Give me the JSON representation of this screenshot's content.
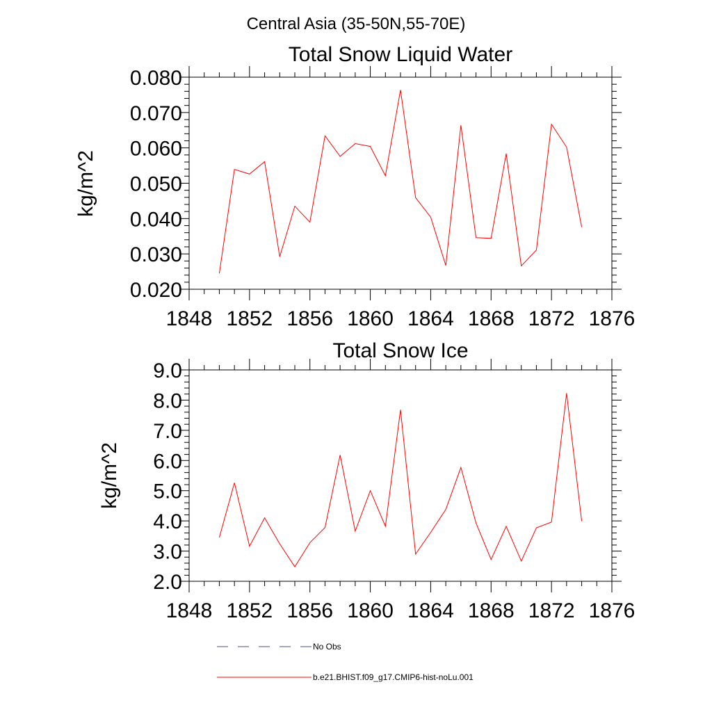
{
  "figure_title": "Central Asia (35-50N,55-70E)",
  "chart_data": [
    {
      "type": "line",
      "title": "Total Snow Liquid Water",
      "xlabel": "",
      "ylabel": "kg/m^2",
      "xlim": [
        1848,
        1876
      ],
      "ylim": [
        0.02,
        0.08
      ],
      "xticks": [
        1848,
        1852,
        1856,
        1860,
        1864,
        1868,
        1872,
        1876
      ],
      "xtick_labels": [
        "1848",
        "1852",
        "1856",
        "1860",
        "1864",
        "1868",
        "1872",
        "1876"
      ],
      "yticks": [
        0.02,
        0.03,
        0.04,
        0.05,
        0.06,
        0.07,
        0.08
      ],
      "ytick_labels": [
        "0.020",
        "0.030",
        "0.040",
        "0.050",
        "0.060",
        "0.070",
        "0.080"
      ],
      "x": [
        1850,
        1851,
        1852,
        1853,
        1854,
        1855,
        1856,
        1857,
        1858,
        1859,
        1860,
        1861,
        1862,
        1863,
        1864,
        1865,
        1866,
        1867,
        1868,
        1869,
        1870,
        1871,
        1872,
        1873,
        1874
      ],
      "series": [
        {
          "name": "b.e21.BHIST.f09_g17.CMIP6-hist-noLu.001",
          "color": "#ff0000",
          "values": [
            0.0245,
            0.0539,
            0.0526,
            0.0561,
            0.0292,
            0.0435,
            0.039,
            0.0634,
            0.0576,
            0.0612,
            0.0604,
            0.0521,
            0.0764,
            0.0459,
            0.0404,
            0.0267,
            0.0664,
            0.0346,
            0.0344,
            0.0584,
            0.0266,
            0.0311,
            0.0667,
            0.0602,
            0.0376
          ]
        }
      ],
      "grid": false
    },
    {
      "type": "line",
      "title": "Total Snow Ice",
      "xlabel": "",
      "ylabel": "kg/m^2",
      "xlim": [
        1848,
        1876
      ],
      "ylim": [
        2.0,
        9.0
      ],
      "xticks": [
        1848,
        1852,
        1856,
        1860,
        1864,
        1868,
        1872,
        1876
      ],
      "xtick_labels": [
        "1848",
        "1852",
        "1856",
        "1860",
        "1864",
        "1868",
        "1872",
        "1876"
      ],
      "yticks": [
        2,
        3,
        4,
        5,
        6,
        7,
        8,
        9
      ],
      "ytick_labels": [
        "2.0",
        "3.0",
        "4.0",
        "5.0",
        "6.0",
        "7.0",
        "8.0",
        "9.0"
      ],
      "x": [
        1850,
        1851,
        1852,
        1853,
        1854,
        1855,
        1856,
        1857,
        1858,
        1859,
        1860,
        1861,
        1862,
        1863,
        1864,
        1865,
        1866,
        1867,
        1868,
        1869,
        1870,
        1871,
        1872,
        1873,
        1874
      ],
      "series": [
        {
          "name": "b.e21.BHIST.f09_g17.CMIP6-hist-noLu.001",
          "color": "#ff0000",
          "values": [
            3.45,
            5.26,
            3.16,
            4.1,
            3.24,
            2.48,
            3.28,
            3.78,
            6.18,
            3.66,
            5.0,
            3.82,
            7.68,
            2.9,
            3.62,
            4.38,
            5.77,
            3.93,
            2.72,
            3.82,
            2.67,
            3.77,
            3.96,
            8.23,
            3.99
          ]
        }
      ],
      "grid": false
    }
  ],
  "legend": {
    "placement": "bottom",
    "items": [
      {
        "label": "No Obs",
        "color": "#4a4a8a",
        "style": "dashed"
      },
      {
        "label": "b.e21.BHIST.f09_g17.CMIP6-hist-noLu.001",
        "color": "#ff0000",
        "style": "solid"
      }
    ]
  }
}
